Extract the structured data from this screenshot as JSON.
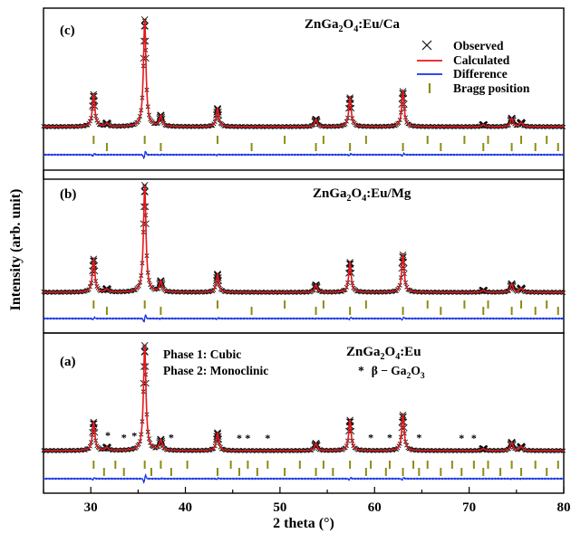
{
  "chart_data": {
    "type": "line",
    "xlabel": "2 theta (°)",
    "ylabel": "Intensity (arb. unit)",
    "xlim": [
      25,
      80
    ],
    "xticks": [
      30,
      40,
      50,
      60,
      70,
      80
    ],
    "grid": false,
    "panels": [
      {
        "tag": "(c)",
        "sample_main": "ZnGa",
        "sample_sub": "2",
        "sample_mid": "O",
        "sample_sub2": "4",
        "sample_tail": ":Eu/Ca",
        "legend": {
          "placement": "top-right",
          "entries": [
            "Observed",
            "Calculated",
            "Difference",
            "Bragg position"
          ]
        },
        "peaks": [
          {
            "x": 30.3,
            "h": 0.3
          },
          {
            "x": 31.7,
            "h": 0.03
          },
          {
            "x": 35.7,
            "h": 1.0
          },
          {
            "x": 37.4,
            "h": 0.1
          },
          {
            "x": 43.4,
            "h": 0.17
          },
          {
            "x": 53.8,
            "h": 0.07
          },
          {
            "x": 57.4,
            "h": 0.27
          },
          {
            "x": 63.0,
            "h": 0.33
          },
          {
            "x": 71.5,
            "h": 0.02
          },
          {
            "x": 74.5,
            "h": 0.08
          },
          {
            "x": 75.5,
            "h": 0.04
          }
        ],
        "bragg_x": [
          30.3,
          31.7,
          35.7,
          37.4,
          43.4,
          47.0,
          50.5,
          53.8,
          54.6,
          57.4,
          59.1,
          63.0,
          65.6,
          67.0,
          69.5,
          71.5,
          72.0,
          74.5,
          75.5,
          77.0,
          78.2,
          79.4
        ]
      },
      {
        "tag": "(b)",
        "sample_main": "ZnGa",
        "sample_sub": "2",
        "sample_mid": "O",
        "sample_sub2": "4",
        "sample_tail": ":Eu/Mg",
        "peaks": [
          {
            "x": 30.3,
            "h": 0.31
          },
          {
            "x": 31.7,
            "h": 0.03
          },
          {
            "x": 35.7,
            "h": 1.0
          },
          {
            "x": 37.4,
            "h": 0.1
          },
          {
            "x": 43.4,
            "h": 0.17
          },
          {
            "x": 53.8,
            "h": 0.07
          },
          {
            "x": 57.4,
            "h": 0.28
          },
          {
            "x": 63.0,
            "h": 0.35
          },
          {
            "x": 71.5,
            "h": 0.02
          },
          {
            "x": 74.5,
            "h": 0.08
          },
          {
            "x": 75.5,
            "h": 0.04
          }
        ],
        "bragg_x": [
          30.3,
          31.7,
          35.7,
          37.4,
          43.4,
          47.0,
          50.5,
          53.8,
          54.6,
          57.4,
          59.1,
          63.0,
          65.6,
          67.0,
          69.5,
          71.5,
          72.0,
          74.5,
          75.5,
          77.0,
          78.2,
          79.4
        ]
      },
      {
        "tag": "(a)",
        "sample_main": "ZnGa",
        "sample_sub": "2",
        "sample_mid": "O",
        "sample_sub2": "4",
        "sample_tail": ":Eu",
        "phase1": "Phase 1: Cubic",
        "phase2": "Phase 2: Monoclinic",
        "impurity_star": "*",
        "impurity_main": "β − Ga",
        "impurity_sub": "2",
        "impurity_mid": "O",
        "impurity_sub2": "3",
        "peaks": [
          {
            "x": 30.3,
            "h": 0.27
          },
          {
            "x": 31.7,
            "h": 0.03
          },
          {
            "x": 35.7,
            "h": 1.0
          },
          {
            "x": 37.4,
            "h": 0.1
          },
          {
            "x": 43.4,
            "h": 0.17
          },
          {
            "x": 53.8,
            "h": 0.07
          },
          {
            "x": 57.4,
            "h": 0.29
          },
          {
            "x": 63.0,
            "h": 0.34
          },
          {
            "x": 71.5,
            "h": 0.02
          },
          {
            "x": 74.5,
            "h": 0.08
          },
          {
            "x": 75.5,
            "h": 0.04
          }
        ],
        "star_x": [
          31.8,
          33.5,
          34.6,
          38.5,
          45.7,
          46.6,
          48.7,
          59.6,
          61.6,
          64.7,
          69.2,
          70.5
        ],
        "bragg_x": [
          30.3,
          31.4,
          32.6,
          33.5,
          35.7,
          36.4,
          37.4,
          38.5,
          40.2,
          43.4,
          44.8,
          45.7,
          46.6,
          47.6,
          48.7,
          50.5,
          52.1,
          53.8,
          54.6,
          55.6,
          57.4,
          59.1,
          59.6,
          61.2,
          61.6,
          63.0,
          64.1,
          64.7,
          65.6,
          67.0,
          68.2,
          69.2,
          70.5,
          71.5,
          72.0,
          73.3,
          74.5,
          75.5,
          77.0,
          78.2,
          79.4
        ]
      }
    ]
  },
  "colors": {
    "observed": "#111111",
    "calculated": "#e8161b",
    "difference": "#1430e6",
    "bragg": "#8c8c14",
    "axis": "#000000"
  }
}
